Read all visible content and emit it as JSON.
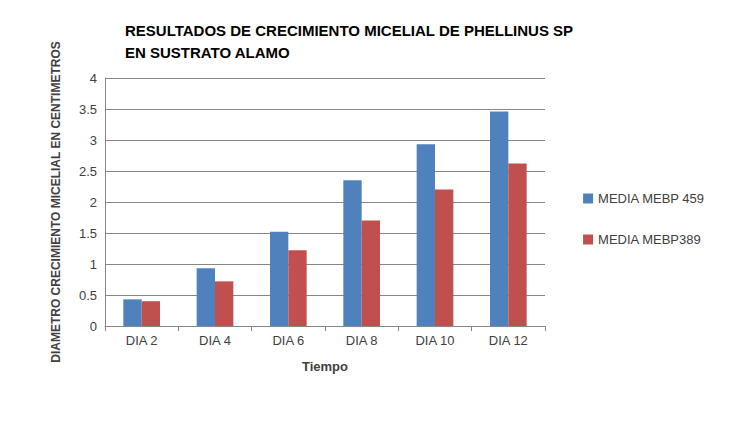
{
  "chart_data": {
    "type": "bar",
    "title": "RESULTADOS DE CRECIMIENTO MICELIAL DE PHELLINUS SP EN SUSTRATO ALAMO",
    "x_label": "Tiempo",
    "y_label": "DIAMETRO CRECIMIENTO MICELIAL EN CENTIMETROS",
    "categories": [
      "DIA 2",
      "DIA 4",
      "DIA 6",
      "DIA 8",
      "DIA 10",
      "DIA 12"
    ],
    "series": [
      {
        "name": "MEDIA MEBP 459",
        "color": "#4f81bd",
        "values": [
          0.43,
          0.93,
          1.52,
          2.35,
          2.93,
          3.46
        ]
      },
      {
        "name": "MEDIA MEBP389",
        "color": "#c0504d",
        "values": [
          0.4,
          0.72,
          1.22,
          1.7,
          2.2,
          2.62
        ]
      }
    ],
    "ylim": [
      0,
      4
    ],
    "yticks": [
      0,
      0.5,
      1,
      1.5,
      2,
      2.5,
      3,
      3.5,
      4
    ],
    "grid": true,
    "legend": "right"
  }
}
